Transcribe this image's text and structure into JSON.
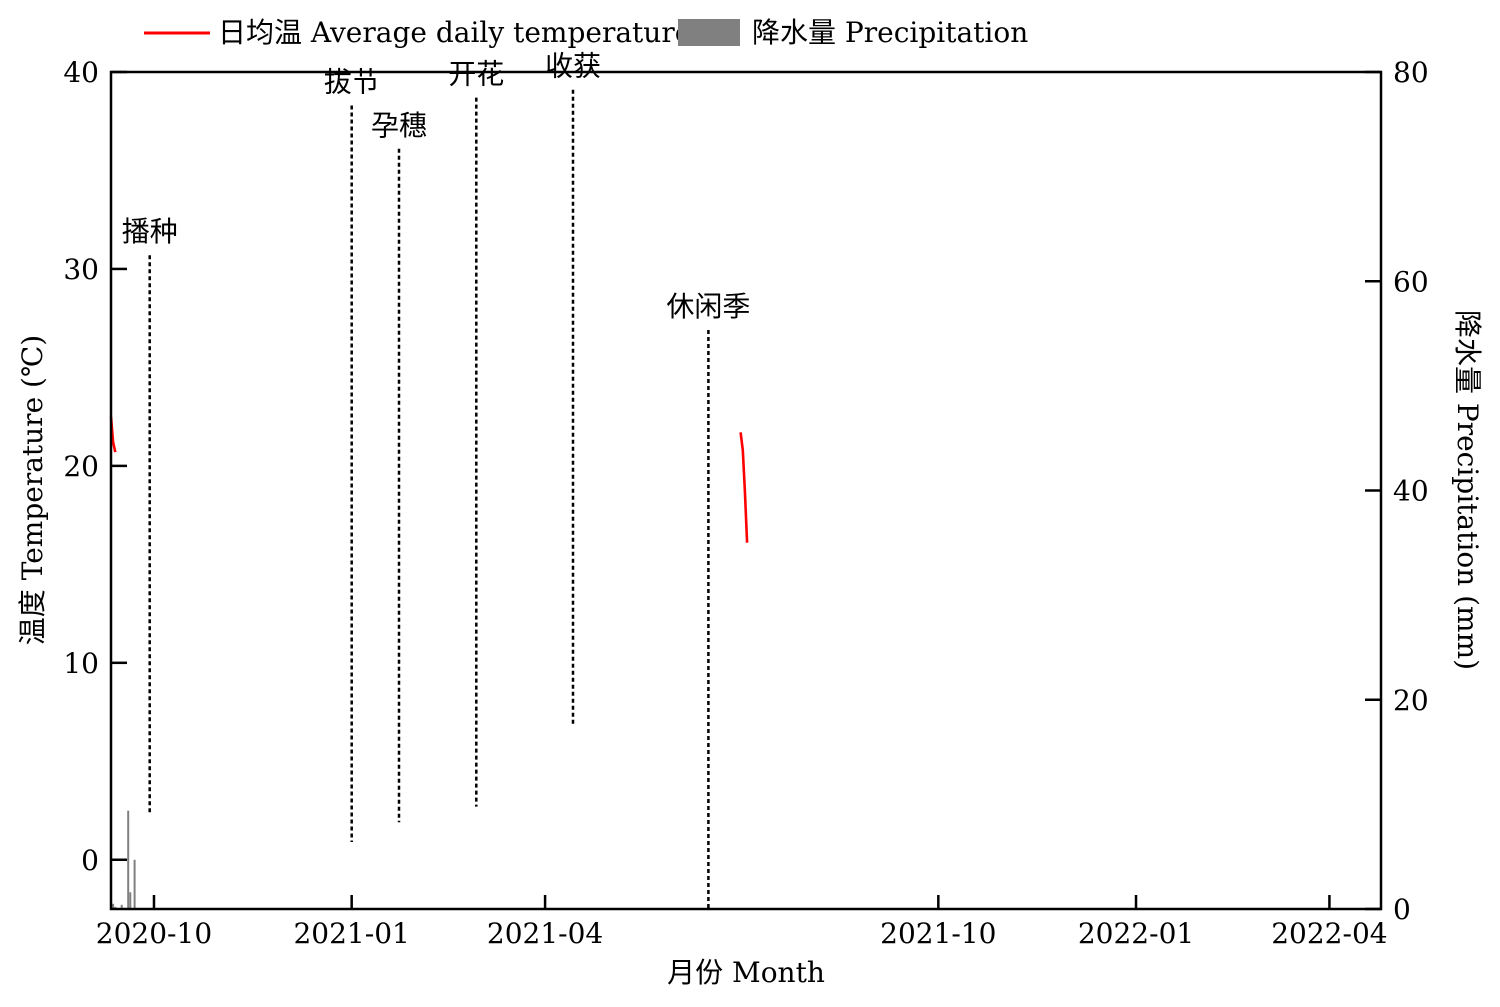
{
  "chart_data": {
    "type": "bar+line",
    "legend": {
      "temperature_label": "日均温 Average daily temperature",
      "precipitation_label": "降水量 Precipitation",
      "placement": "top-left",
      "temperature_color": "#ff0000",
      "precipitation_color": "#808080"
    },
    "y_left": {
      "label": "温度 Temperature (℃)",
      "ylim": [
        -2.5,
        40
      ],
      "ticks": [
        0,
        10,
        20,
        30,
        40
      ]
    },
    "y_right": {
      "label": "降水量 Precipitation (mm)",
      "ylim": [
        0,
        80
      ],
      "ticks": [
        0,
        20,
        40,
        60,
        80
      ]
    },
    "x_axis": {
      "label": "月份 Month",
      "range": [
        "2020-09-11",
        "2022-04-25"
      ],
      "ticks": [
        {
          "date": "2020-10-01",
          "label": "2020-10"
        },
        {
          "date": "2021-01-01",
          "label": "2021-01"
        },
        {
          "date": "2021-04-01",
          "label": "2021-04"
        },
        {
          "date": "2021-10-01",
          "label": "2021-10"
        },
        {
          "date": "2022-01-01",
          "label": "2022-01"
        },
        {
          "date": "2022-04-01",
          "label": "2022-04"
        }
      ]
    },
    "stages": [
      {
        "label": "播种",
        "date": "2020-09-29",
        "top": 30.7,
        "bottom": 2.4
      },
      {
        "label": "拔节",
        "date": "2021-01-01",
        "top": 38.3,
        "bottom": 0.9
      },
      {
        "label": "孕穗",
        "date": "2021-01-23",
        "top": 36.1,
        "bottom": 1.9
      },
      {
        "label": "开花",
        "date": "2021-02-28",
        "top": 38.7,
        "bottom": 2.7
      },
      {
        "label": "收获",
        "date": "2021-04-14",
        "top": 39.1,
        "bottom": 6.9
      },
      {
        "label": "休闲季",
        "date": "2021-06-16",
        "top": 26.9,
        "bottom": -2.5
      }
    ],
    "temperature_series": [
      {
        "name": "日均温 Average daily temperature",
        "points": [
          {
            "x": "2020-09-11",
            "y": 22.5
          },
          {
            "x": "2020-09-12",
            "y": 21.2
          },
          {
            "x": "2020-09-13",
            "y": 20.7
          }
        ]
      },
      {
        "name": "日均温 Average daily temperature",
        "points": [
          {
            "x": "2021-07-01",
            "y": 21.7
          },
          {
            "x": "2021-07-02",
            "y": 20.8
          },
          {
            "x": "2021-07-03",
            "y": 18.7
          },
          {
            "x": "2021-07-04",
            "y": 16.1
          }
        ]
      }
    ],
    "precipitation_points": [
      {
        "x": "2020-09-11",
        "y": 0.6
      },
      {
        "x": "2020-09-12",
        "y": 0.5
      },
      {
        "x": "2020-09-13",
        "y": 0.2
      },
      {
        "x": "2020-09-16",
        "y": 0.4
      },
      {
        "x": "2020-09-19",
        "y": 9.4
      },
      {
        "x": "2020-09-20",
        "y": 1.6
      },
      {
        "x": "2020-09-22",
        "y": 4.7
      }
    ]
  }
}
